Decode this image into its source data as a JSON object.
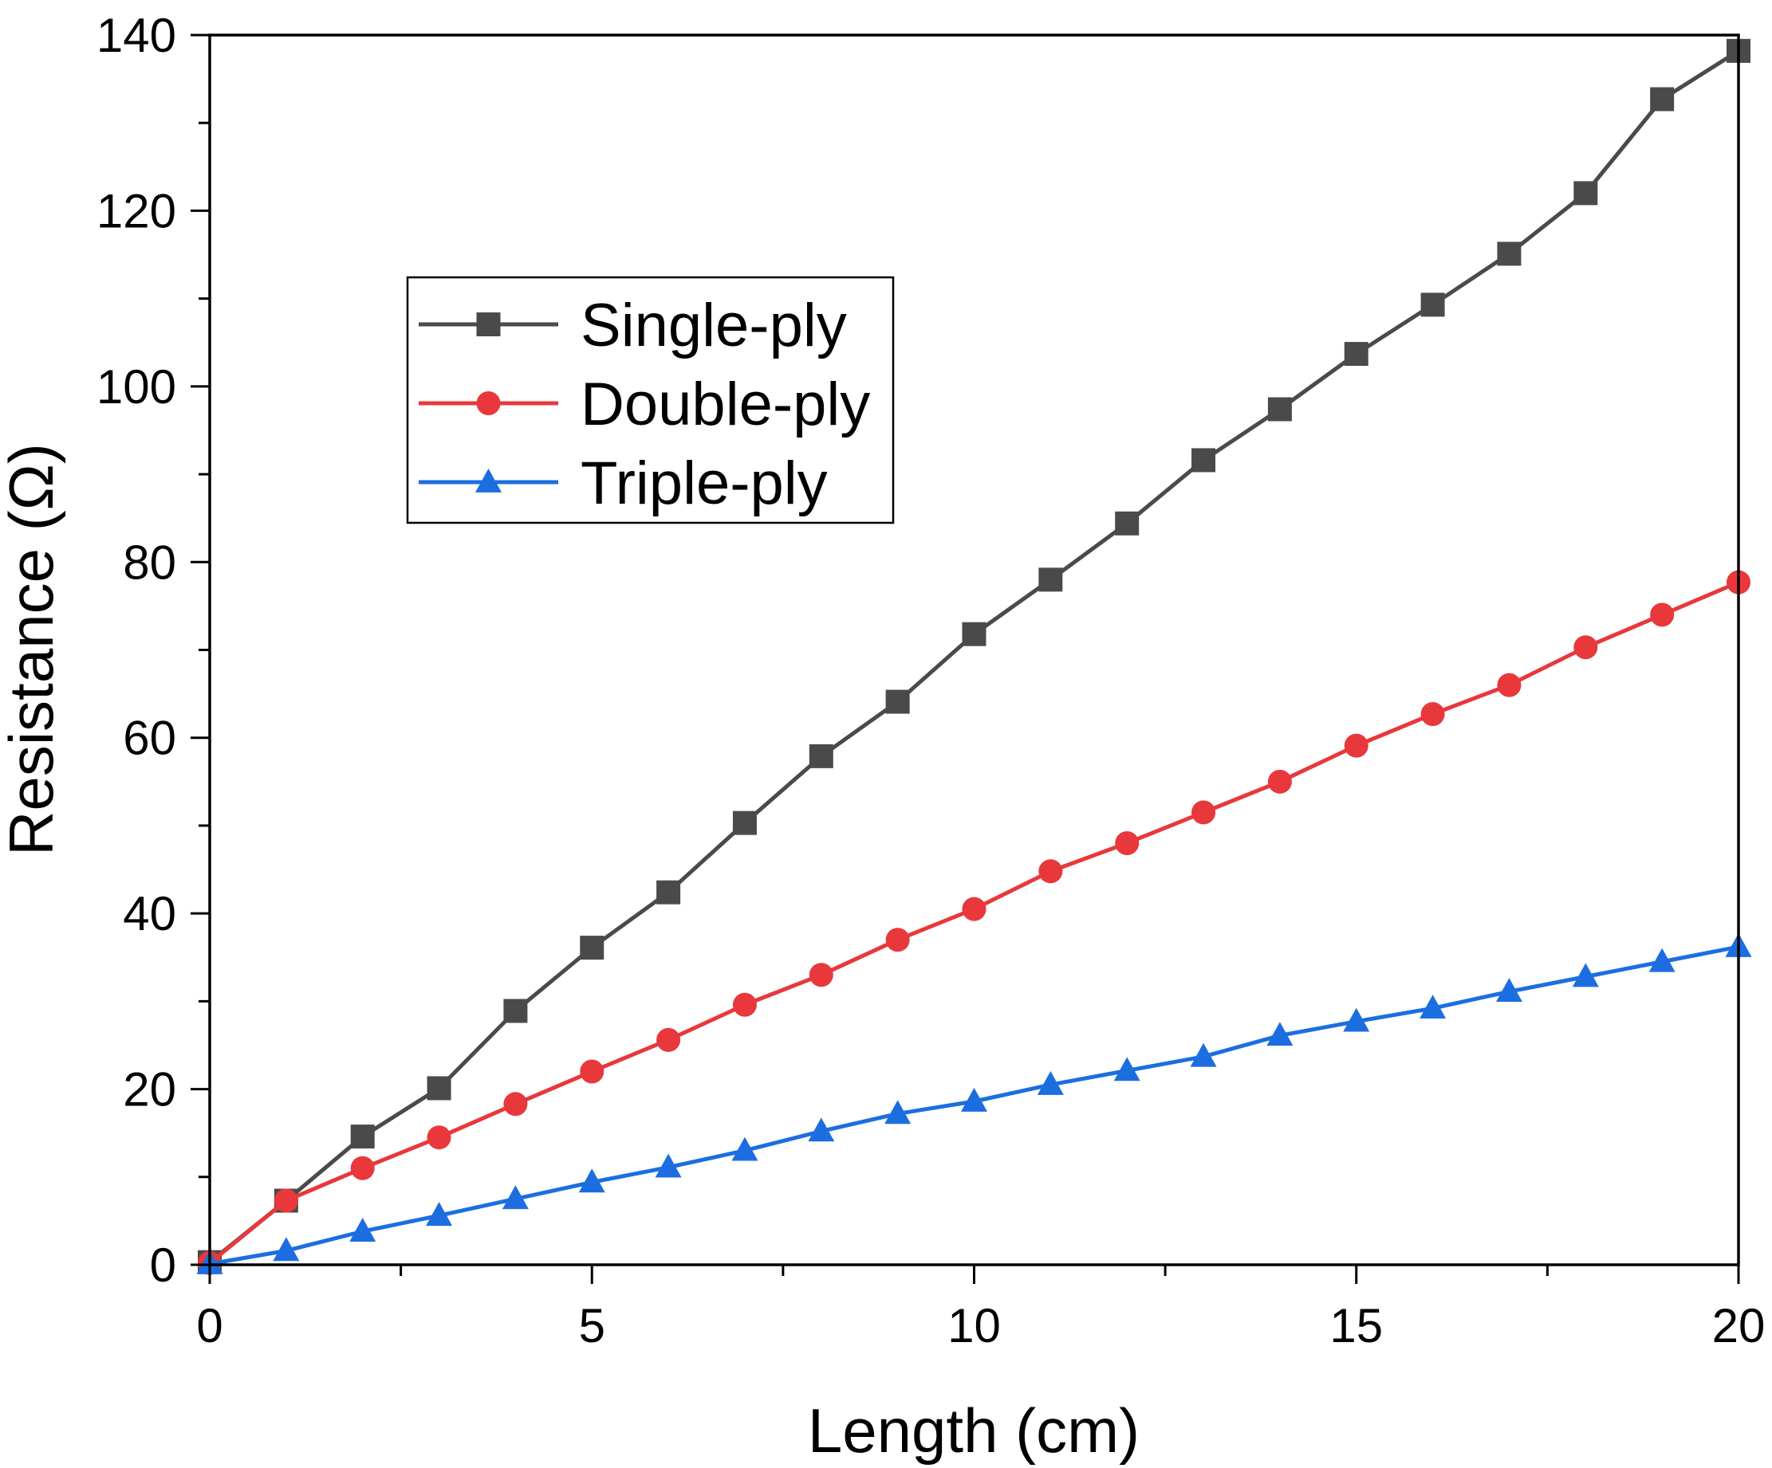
{
  "chart_data": {
    "type": "line",
    "title": "",
    "xlabel": "Length (cm)",
    "ylabel": "Resistance (Ω)",
    "xlim": [
      0,
      20
    ],
    "ylim": [
      0,
      140
    ],
    "xticks": [
      0,
      5,
      10,
      15,
      20
    ],
    "xtick_labels": [
      "0",
      "5",
      "10",
      "15",
      "20"
    ],
    "yticks": [
      0,
      20,
      40,
      60,
      80,
      100,
      120,
      140
    ],
    "ytick_labels": [
      "0",
      "20",
      "40",
      "60",
      "80",
      "100",
      "120",
      "140"
    ],
    "x_minor_step": 2.5,
    "y_minor_step": 10,
    "grid": false,
    "legend_position": "upper-left",
    "x": [
      0,
      1,
      2,
      3,
      4,
      5,
      6,
      7,
      8,
      9,
      10,
      11,
      12,
      13,
      14,
      15,
      16,
      17,
      18,
      19,
      20
    ],
    "series": [
      {
        "name": "Single-ply",
        "color": "#4a4a4a",
        "marker": "square",
        "values": [
          0.3,
          7.3,
          14.6,
          20.1,
          28.9,
          36.1,
          42.4,
          50.3,
          57.9,
          64.1,
          71.8,
          78.0,
          84.4,
          91.6,
          97.4,
          103.7,
          109.3,
          115.1,
          122.0,
          132.7,
          138.2
        ]
      },
      {
        "name": "Double-ply",
        "color": "#e8383b",
        "marker": "circle",
        "values": [
          0.2,
          7.3,
          11.0,
          14.5,
          18.3,
          22.0,
          25.6,
          29.6,
          33.0,
          37.0,
          40.5,
          44.8,
          48.0,
          51.5,
          55.0,
          59.1,
          62.7,
          66.0,
          70.3,
          74.0,
          77.7
        ]
      },
      {
        "name": "Triple-ply",
        "color": "#1c6ee0",
        "marker": "triangle",
        "values": [
          0.1,
          1.6,
          3.8,
          5.6,
          7.5,
          9.4,
          11.1,
          13.0,
          15.2,
          17.2,
          18.6,
          20.5,
          22.1,
          23.7,
          26.1,
          27.7,
          29.2,
          31.1,
          32.8,
          34.5,
          36.2
        ]
      }
    ]
  }
}
